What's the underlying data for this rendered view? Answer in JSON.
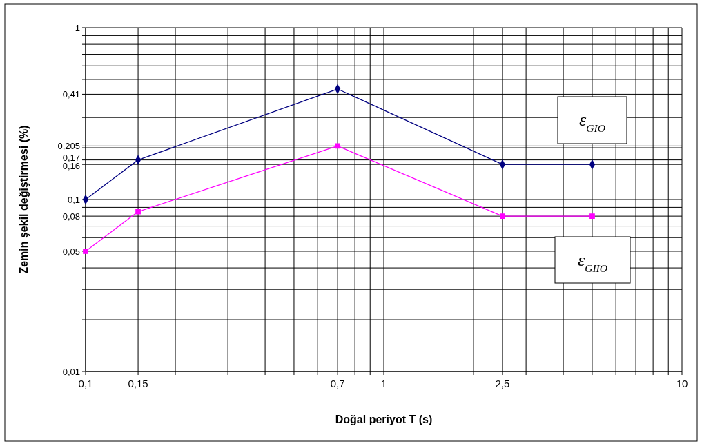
{
  "chart_data": {
    "type": "line",
    "xlabel": "Doğal periyot T (s)",
    "ylabel": "Zemin şekil değiştirmesi (%)",
    "log": "xy",
    "grid": true,
    "x": [
      0.1,
      0.15,
      0.7,
      2.5,
      5
    ],
    "xlim": [
      0.1,
      10
    ],
    "ylim": [
      0.01,
      1
    ],
    "xticks": [
      {
        "value": 0.1,
        "label": "0,1"
      },
      {
        "value": 0.15,
        "label": "0,15"
      },
      {
        "value": 0.2,
        "label": null
      },
      {
        "value": 0.3,
        "label": null
      },
      {
        "value": 0.4,
        "label": null
      },
      {
        "value": 0.5,
        "label": null
      },
      {
        "value": 0.6,
        "label": null
      },
      {
        "value": 0.7,
        "label": "0,7"
      },
      {
        "value": 0.8,
        "label": null
      },
      {
        "value": 0.9,
        "label": null
      },
      1,
      {
        "value": 2,
        "label": null
      },
      {
        "value": 2.5,
        "label": "2,5"
      },
      {
        "value": 3,
        "label": null
      },
      {
        "value": 4,
        "label": null
      },
      {
        "value": 5,
        "label": null
      },
      {
        "value": 6,
        "label": null
      },
      {
        "value": 7,
        "label": null
      },
      {
        "value": 8,
        "label": null
      },
      {
        "value": 9,
        "label": null
      },
      10
    ],
    "yticks": [
      {
        "value": 0.01,
        "label": "0,01"
      },
      {
        "value": 0.02,
        "label": null
      },
      {
        "value": 0.03,
        "label": null
      },
      {
        "value": 0.04,
        "label": null
      },
      {
        "value": 0.05,
        "label": "0,05"
      },
      {
        "value": 0.06,
        "label": null
      },
      {
        "value": 0.07,
        "label": null
      },
      {
        "value": 0.08,
        "label": "0,08"
      },
      {
        "value": 0.09,
        "label": null
      },
      {
        "value": 0.1,
        "label": "0,1"
      },
      {
        "value": 0.16,
        "label": "0,16"
      },
      {
        "value": 0.17,
        "label": "0,17"
      },
      {
        "value": 0.2,
        "label": null
      },
      {
        "value": 0.205,
        "label": "0,205"
      },
      {
        "value": 0.3,
        "label": null
      },
      {
        "value": 0.41,
        "label": "0,41"
      },
      {
        "value": 0.5,
        "label": null
      },
      {
        "value": 0.6,
        "label": null
      },
      {
        "value": 0.7,
        "label": null
      },
      {
        "value": 0.8,
        "label": null
      },
      {
        "value": 0.9,
        "label": null
      },
      1
    ],
    "legend": false,
    "series": [
      {
        "name": "ε$_{GIO}$",
        "color": "#000080",
        "marker": "diamond",
        "values": [
          0.1,
          0.17,
          0.44,
          0.16,
          0.16
        ]
      },
      {
        "name": "ε$_{GIIO}$",
        "color": "#ff00ff",
        "marker": "square",
        "values": [
          0.05,
          0.085,
          0.205,
          0.08,
          0.08
        ]
      }
    ]
  }
}
